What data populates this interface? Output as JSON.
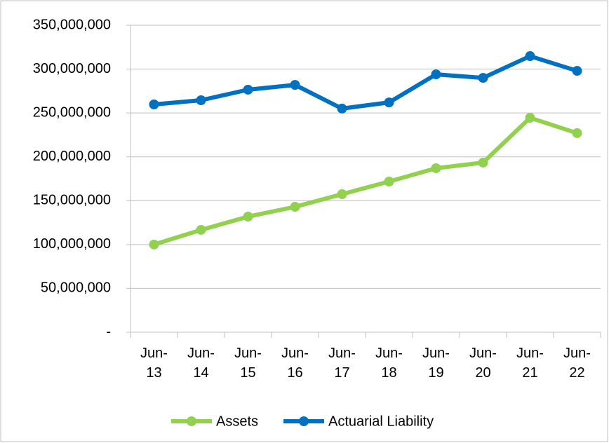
{
  "chart_data": {
    "type": "line",
    "categories": [
      "Jun-13",
      "Jun-14",
      "Jun-15",
      "Jun-16",
      "Jun-17",
      "Jun-18",
      "Jun-19",
      "Jun-20",
      "Jun-21",
      "Jun-22"
    ],
    "series": [
      {
        "name": "Assets",
        "color": "#92d050",
        "values": [
          100000000,
          116700000,
          131800000,
          143000000,
          157400000,
          171800000,
          187000000,
          193400000,
          244500000,
          227000000
        ]
      },
      {
        "name": "Actuarial Liability",
        "color": "#0070c0",
        "values": [
          259700000,
          264500000,
          276500000,
          282000000,
          255000000,
          262000000,
          294000000,
          290000000,
          314800000,
          298000000
        ]
      }
    ],
    "ylim": [
      0,
      350000000
    ],
    "yticks": [
      {
        "value": 0,
        "label": "-"
      },
      {
        "value": 50000000,
        "label": "50,000,000"
      },
      {
        "value": 100000000,
        "label": "100,000,000"
      },
      {
        "value": 150000000,
        "label": "150,000,000"
      },
      {
        "value": 200000000,
        "label": "200,000,000"
      },
      {
        "value": 250000000,
        "label": "250,000,000"
      },
      {
        "value": 300000000,
        "label": "300,000,000"
      },
      {
        "value": 350000000,
        "label": "350,000,000"
      }
    ],
    "grid": true,
    "legend": "bottom"
  }
}
